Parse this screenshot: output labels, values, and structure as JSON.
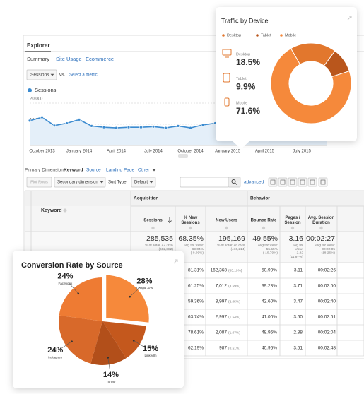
{
  "ui": {
    "tab": "Explorer",
    "subtabs": [
      "Summary",
      "Site Usage",
      "Ecommerce"
    ],
    "metric": "Sessions",
    "vs": "vs.",
    "select_metric": "Select a metric",
    "primary_dimension": {
      "label": "Primary Dimension:",
      "options": [
        "Keyword",
        "Source",
        "Landing Page",
        "Other"
      ]
    },
    "toolbar": {
      "plot_rows": "Plot Rows",
      "secondary": "Secondary dimension",
      "sort_type": "Sort Type:",
      "sort_value": "Default",
      "advanced": "advanced"
    },
    "table": {
      "groups": [
        "Acquisition",
        "Behavior"
      ],
      "keyword_header": "Keyword",
      "headers": [
        [
          "Sessions"
        ],
        [
          "% New",
          "Sessions"
        ],
        [
          "New Users"
        ],
        [
          "Bounce Rate"
        ],
        [
          "Pages /",
          "Session"
        ],
        [
          "Avg. Session",
          "Duration"
        ]
      ],
      "totals": [
        {
          "value": "285,535",
          "note": [
            "% of Total: 47.36%",
            "(602,882)"
          ]
        },
        {
          "value": "68.35%",
          "note": [
            "Avg for View:",
            "69.04%",
            "(-0.99%)"
          ]
        },
        {
          "value": "195,169",
          "note": [
            "% of Total: 46.89%",
            "(416,214)"
          ]
        },
        {
          "value": "49.55%",
          "note": [
            "Avg for View:",
            "55.55%",
            "(-10.79%)"
          ]
        },
        {
          "value": "3.16",
          "note": [
            "Avg for",
            "View:",
            "2.82",
            "(11.97%)"
          ]
        },
        {
          "value": "00:02:27",
          "note": [
            "Avg for View:",
            "00:02:05",
            "(18.26%)"
          ]
        }
      ],
      "rows": [
        [
          "81.31%",
          "162,368",
          "(83.19%)",
          "50.90%",
          "3.11",
          "00:02:26"
        ],
        [
          "61.25%",
          "7,012",
          "(3.59%)",
          "39.23%",
          "3.71",
          "00:02:50"
        ],
        [
          "59.36%",
          "3,997",
          "(2.05%)",
          "42.60%",
          "3.47",
          "00:02:40"
        ],
        [
          "63.74%",
          "2,997",
          "(1.54%)",
          "41.00%",
          "3.60",
          "00:02:51"
        ],
        [
          "78.61%",
          "2,087",
          "(1.07%)",
          "48.96%",
          "2.88",
          "00:02:04"
        ],
        [
          "62.19%",
          "987",
          "(0.51%)",
          "40.96%",
          "3.51",
          "00:02:48"
        ]
      ]
    }
  },
  "chart_data": [
    {
      "type": "line",
      "categories": [
        null,
        "October 2013",
        null,
        null,
        "January 2014",
        null,
        null,
        "April 2014",
        null,
        null,
        "July 2014",
        null,
        null,
        "October 2014",
        null,
        null,
        "January 2015",
        null,
        null,
        "April 2015",
        null,
        null,
        "July 2015",
        null,
        null
      ],
      "series": [
        {
          "name": "Sessions",
          "color": "#3b8bd0",
          "values": [
            11700,
            13300,
            9400,
            10500,
            12200,
            9200,
            8600,
            8300,
            8600,
            8600,
            8900,
            8300,
            9200,
            8300,
            9700,
            10500,
            11700,
            12400,
            11600,
            11000,
            12300,
            11400,
            10800,
            11800,
            12100
          ]
        }
      ],
      "ylim": [
        0,
        20000
      ],
      "yticks": [
        {
          "value": 10000,
          "label": "10,000"
        },
        {
          "value": 20000,
          "label": "20,000"
        }
      ],
      "grid": true
    },
    {
      "type": "donut",
      "title": "Traffic by Device",
      "categories": [
        "Desktop",
        "Tablet",
        "Mobile"
      ],
      "values": [
        18.5,
        9.9,
        71.6
      ],
      "value_labels": [
        "18.5%",
        "9.9%",
        "71.6%"
      ],
      "colors": [
        "#e2772d",
        "#b9561c",
        "#f5893b"
      ]
    },
    {
      "type": "pie",
      "title": "Conversion Rate by Source",
      "categories": [
        "Google Ads",
        "LinkedIn",
        "TikTok",
        "Instagram",
        "Facebook"
      ],
      "values": [
        28,
        15,
        14,
        24,
        24
      ],
      "value_labels": [
        "28%",
        "15%",
        "14%",
        "24%",
        "24%"
      ],
      "colors": [
        "#f6893b",
        "#c4581d",
        "#b24f1a",
        "#d8692a",
        "#ee7b33"
      ],
      "explode": [
        true,
        false,
        false,
        false,
        false
      ]
    }
  ]
}
